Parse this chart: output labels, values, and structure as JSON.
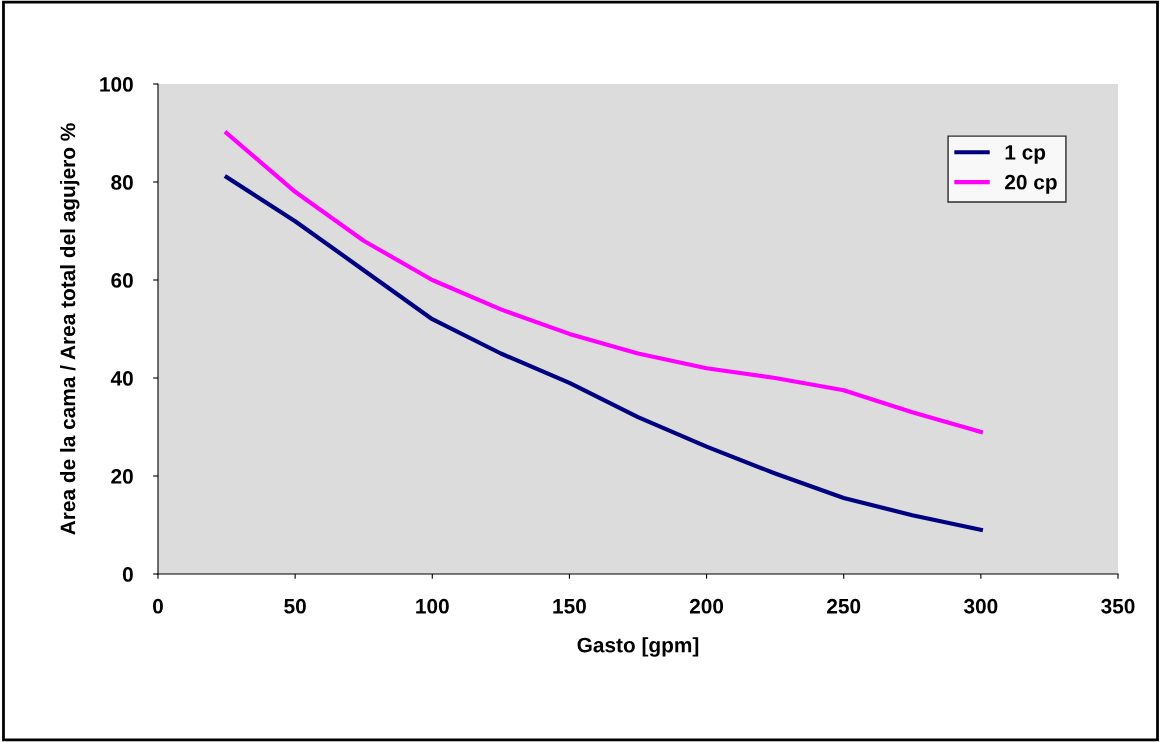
{
  "chart_data": {
    "type": "line",
    "xlabel": "Gasto [gpm]",
    "ylabel": "Area de la cama / Area total del agujero %",
    "x": [
      25,
      50,
      75,
      100,
      125,
      150,
      175,
      200,
      225,
      250,
      275,
      300
    ],
    "series": [
      {
        "name": "1 cp",
        "color": "#000080",
        "values": [
          81,
          72,
          62,
          52,
          45,
          39,
          32,
          26,
          20.5,
          15.5,
          12,
          9
        ]
      },
      {
        "name": "20 cp",
        "color": "#ff00ff",
        "values": [
          90,
          78,
          68,
          60,
          54,
          49,
          45,
          42,
          40,
          37.5,
          33,
          29
        ]
      }
    ],
    "xlim": [
      0,
      350
    ],
    "xticks": [
      0,
      50,
      100,
      150,
      200,
      250,
      300,
      350
    ],
    "ylim": [
      0,
      100
    ],
    "yticks": [
      0,
      20,
      40,
      60,
      80,
      100
    ],
    "grid": false,
    "legend": "top right",
    "marker": "none",
    "line_style": "solid"
  }
}
